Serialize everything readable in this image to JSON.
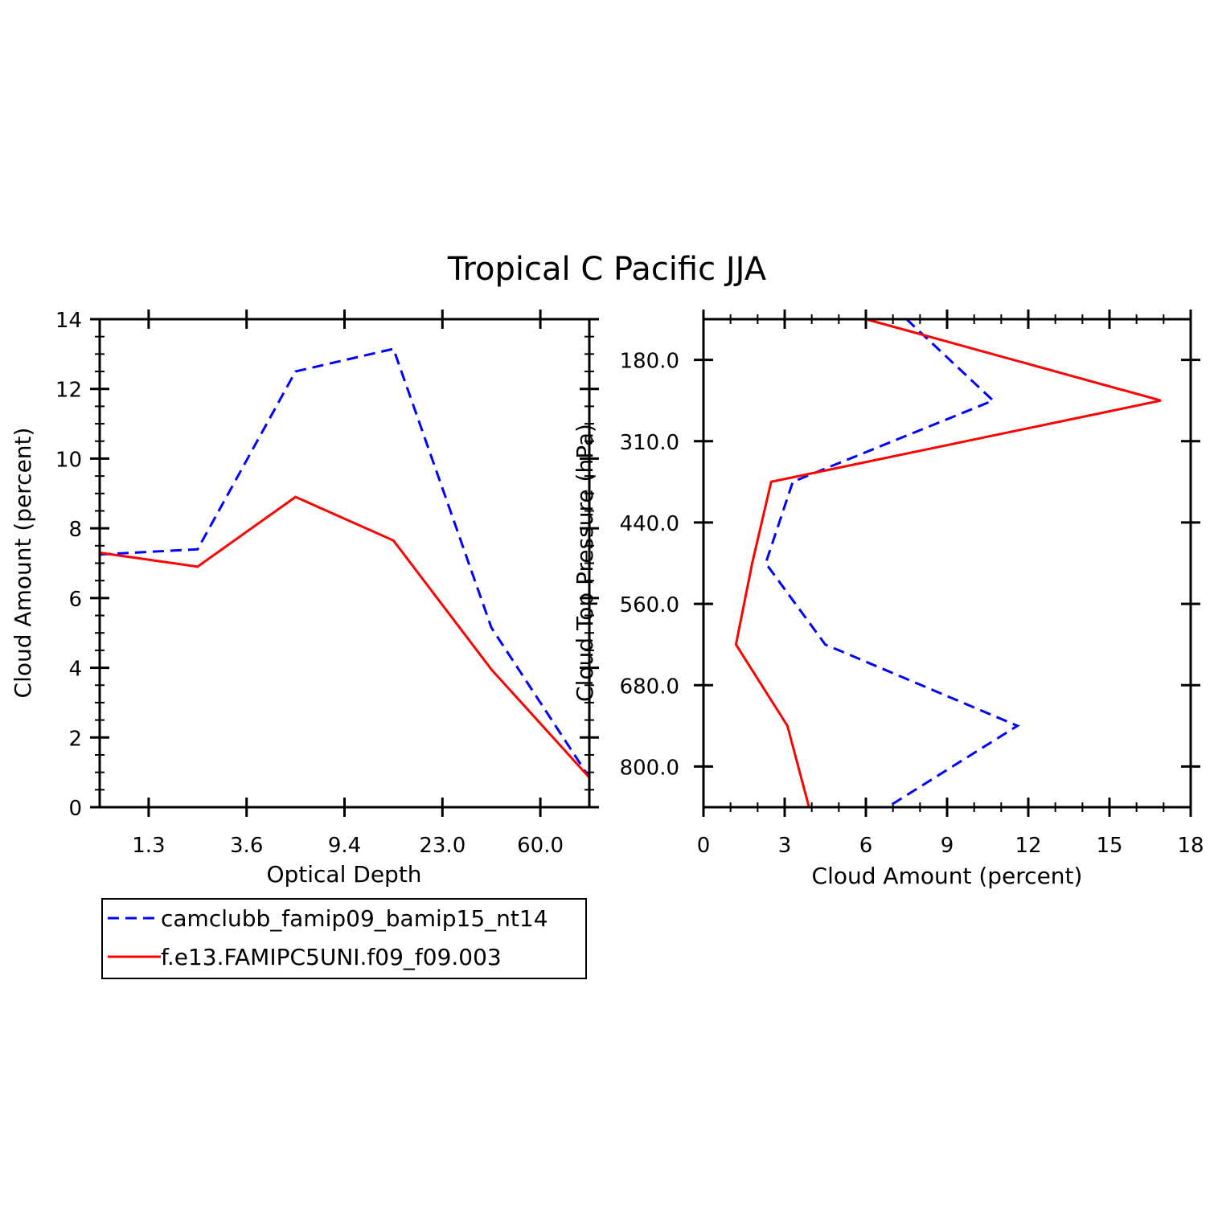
{
  "chart_data": [
    {
      "type": "line",
      "title": "Tropical C Pacific JJA",
      "xlabel": "Optical Depth",
      "ylabel": "Cloud Amount (percent)",
      "ylim": [
        0,
        14
      ],
      "yticks": [
        "0",
        "2",
        "4",
        "6",
        "8",
        "10",
        "12",
        "14"
      ],
      "categories": [
        "1.3",
        "3.6",
        "9.4",
        "23.0",
        "60.0"
      ],
      "x_index_range": [
        0,
        5
      ],
      "series": [
        {
          "name": "camclubb_famip09_bamip15_nt14",
          "style": "dashed",
          "color": "#0000ff",
          "x": [
            0,
            1,
            2,
            3,
            4,
            5
          ],
          "values": [
            7.25,
            7.4,
            12.5,
            13.15,
            5.15,
            0.85
          ]
        },
        {
          "name": "f.e13.FAMIPC5UNI.f09_f09.003",
          "style": "solid",
          "color": "#ff0000",
          "x": [
            0,
            1,
            2,
            3,
            4,
            5
          ],
          "values": [
            7.3,
            6.9,
            8.9,
            7.65,
            3.95,
            0.85
          ]
        }
      ]
    },
    {
      "type": "line",
      "xlabel": "Cloud Amount (percent)",
      "ylabel": "Cloud Top Pressure (hPa)",
      "xlim": [
        0,
        18
      ],
      "xticks": [
        "0",
        "3",
        "6",
        "9",
        "12",
        "15",
        "18"
      ],
      "yticks": [
        "180.0",
        "310.0",
        "440.0",
        "560.0",
        "680.0",
        "800.0"
      ],
      "y_level_range": [
        0,
        6
      ],
      "series": [
        {
          "name": "camclubb_famip09_bamip15_nt14",
          "style": "dashed",
          "color": "#0000ff",
          "x": [
            7.5,
            10.7,
            3.3,
            2.3,
            4.5,
            11.6,
            6.8
          ],
          "levels": [
            0,
            1,
            2,
            3,
            4,
            5,
            6
          ]
        },
        {
          "name": "f.e13.FAMIPC5UNI.f09_f09.003",
          "style": "solid",
          "color": "#ff0000",
          "x": [
            6.0,
            16.9,
            2.5,
            1.8,
            1.2,
            3.1,
            3.9
          ],
          "levels": [
            0,
            1,
            2,
            3,
            4,
            5,
            6
          ]
        }
      ]
    }
  ],
  "legend": {
    "entries": [
      {
        "label": "camclubb_famip09_bamip15_nt14",
        "style": "dashed",
        "color": "#0000ff"
      },
      {
        "label": "f.e13.FAMIPC5UNI.f09_f09.003",
        "style": "solid",
        "color": "#ff0000"
      }
    ]
  }
}
